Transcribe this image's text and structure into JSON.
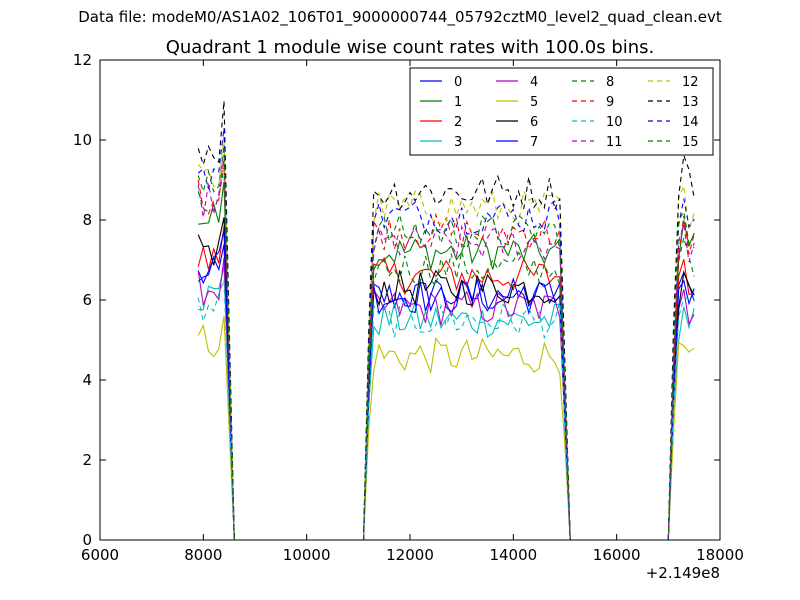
{
  "figure": {
    "suptitle": "Data file: modeM0/AS1A02_106T01_9000000744_05792cztM0_level2_quad_clean.evt",
    "title": "Quadrant 1 module wise count rates with 100.0s bins."
  },
  "chart_data": {
    "type": "line",
    "title": "Quadrant 1 module wise count rates with 100.0s bins.",
    "xlabel": "",
    "ylabel": "",
    "x_offset_label": "+2.149e8",
    "xlim": [
      6000,
      18000
    ],
    "ylim": [
      0,
      12
    ],
    "x_ticks": [
      6000,
      8000,
      10000,
      12000,
      14000,
      16000,
      18000
    ],
    "x_tick_labels": [
      "6000",
      "8000",
      "10000",
      "12000",
      "14000",
      "16000",
      "18000"
    ],
    "y_ticks": [
      0,
      2,
      4,
      6,
      8,
      10,
      12
    ],
    "y_tick_labels": [
      "0",
      "2",
      "4",
      "6",
      "8",
      "10",
      "12"
    ],
    "grid": false,
    "legend_placement": "top-right",
    "legend_columns": 4,
    "segments": [
      {
        "x_start": 7900,
        "count": 8
      },
      {
        "x_start": 11200,
        "count": 40
      },
      {
        "x_start": 17000,
        "count": 6
      }
    ],
    "gaps": [
      {
        "x_from": 8600,
        "x_to": 11100
      },
      {
        "x_from": 15200,
        "x_to": 16900
      }
    ],
    "x_step": 100,
    "series": [
      {
        "name": "0",
        "color": "#0000ff",
        "style": "solid",
        "levels": [
          6.6,
          6.1,
          6.2
        ]
      },
      {
        "name": "1",
        "color": "#008000",
        "style": "solid",
        "levels": [
          8.0,
          7.2,
          7.4
        ]
      },
      {
        "name": "2",
        "color": "#ff0000",
        "style": "solid",
        "levels": [
          7.0,
          6.6,
          6.5
        ]
      },
      {
        "name": "3",
        "color": "#00bfbf",
        "style": "solid",
        "levels": [
          6.1,
          5.5,
          5.4
        ]
      },
      {
        "name": "4",
        "color": "#bf00bf",
        "style": "solid",
        "levels": [
          6.3,
          5.8,
          5.8
        ]
      },
      {
        "name": "5",
        "color": "#bfbf00",
        "style": "solid",
        "levels": [
          5.0,
          4.6,
          4.5
        ]
      },
      {
        "name": "6",
        "color": "#000000",
        "style": "solid",
        "levels": [
          7.2,
          6.3,
          6.2
        ]
      },
      {
        "name": "7",
        "color": "#0000ff",
        "style": "solid",
        "levels": [
          6.9,
          6.1,
          6.0
        ]
      },
      {
        "name": "8",
        "color": "#008000",
        "style": "dashed",
        "levels": [
          8.3,
          6.8,
          7.0
        ]
      },
      {
        "name": "9",
        "color": "#ff0000",
        "style": "dashed",
        "levels": [
          8.6,
          7.7,
          7.5
        ]
      },
      {
        "name": "10",
        "color": "#00bfbf",
        "style": "dashed",
        "levels": [
          5.8,
          5.5,
          5.6
        ]
      },
      {
        "name": "11",
        "color": "#bf00bf",
        "style": "dashed",
        "levels": [
          8.5,
          7.4,
          7.3
        ]
      },
      {
        "name": "12",
        "color": "#bfbf00",
        "style": "dashed",
        "levels": [
          9.0,
          8.3,
          8.2
        ]
      },
      {
        "name": "13",
        "color": "#000000",
        "style": "dashed",
        "levels": [
          9.8,
          8.7,
          8.9
        ]
      },
      {
        "name": "14",
        "color": "#0000ff",
        "style": "dashed",
        "levels": [
          9.2,
          8.1,
          7.9
        ]
      },
      {
        "name": "15",
        "color": "#008000",
        "style": "dashed",
        "levels": [
          8.8,
          7.7,
          7.6
        ]
      }
    ]
  }
}
